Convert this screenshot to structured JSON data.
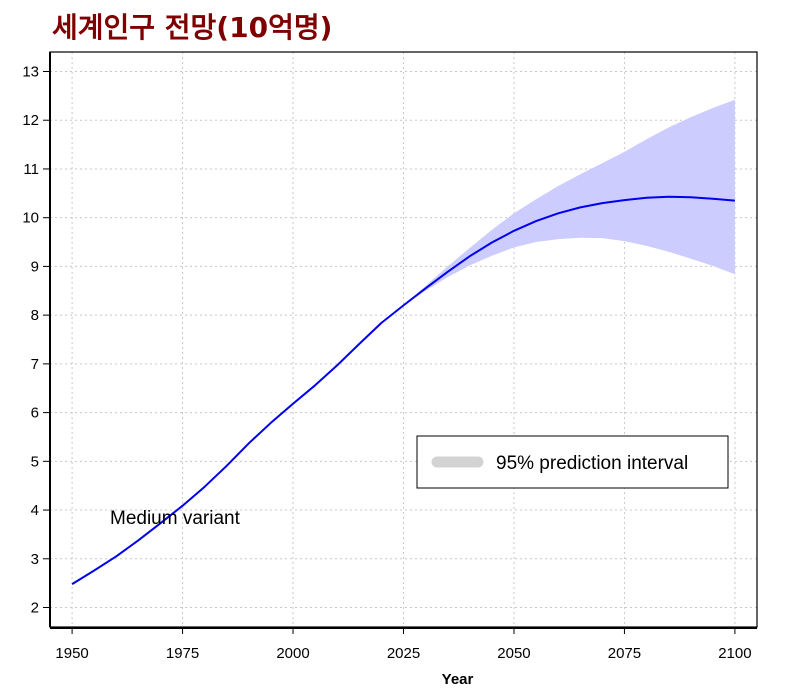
{
  "title": "세계인구 전망(10억명)",
  "colors": {
    "title": "#7f0000",
    "median_line": "#0000ee",
    "interval_fill": "#ccccff",
    "legend_swatch": "#d3d3d3",
    "grid": "#c8c8c8"
  },
  "chart_data": {
    "type": "line",
    "title": "세계인구 전망(10억명)",
    "xlabel": "Year",
    "ylabel": "",
    "xlim": [
      1945,
      2105
    ],
    "ylim": [
      1.6,
      13.4
    ],
    "xticks": [
      1950,
      1975,
      2000,
      2025,
      2050,
      2075,
      2100
    ],
    "yticks": [
      2,
      3,
      4,
      5,
      6,
      7,
      8,
      9,
      10,
      11,
      12,
      13
    ],
    "grid": true,
    "annotation": "Medium variant",
    "legend": {
      "placement": "right",
      "entries": [
        "95% prediction interval"
      ]
    },
    "series": [
      {
        "kind": "line",
        "x": [
          1950,
          1955,
          1960,
          1965,
          1970,
          1975,
          1980,
          1985,
          1990,
          1995,
          2000,
          2005,
          2010,
          2015,
          2020,
          2025,
          2030,
          2035,
          2040,
          2045,
          2050,
          2055,
          2060,
          2065,
          2070,
          2075,
          2080,
          2085,
          2090,
          2095,
          2100
        ],
        "y": [
          2.48,
          2.76,
          3.05,
          3.38,
          3.73,
          4.09,
          4.48,
          4.91,
          5.37,
          5.79,
          6.18,
          6.56,
          6.97,
          7.41,
          7.84,
          8.2,
          8.55,
          8.89,
          9.21,
          9.49,
          9.73,
          9.93,
          10.09,
          10.21,
          10.3,
          10.36,
          10.41,
          10.43,
          10.42,
          10.39,
          10.35
        ]
      },
      {
        "kind": "band",
        "name": "95% prediction interval",
        "x": [
          2025,
          2030,
          2035,
          2040,
          2045,
          2050,
          2055,
          2060,
          2065,
          2070,
          2075,
          2080,
          2085,
          2090,
          2095,
          2100
        ],
        "lower": [
          8.2,
          8.5,
          8.78,
          9.02,
          9.22,
          9.39,
          9.5,
          9.56,
          9.59,
          9.58,
          9.52,
          9.42,
          9.3,
          9.16,
          9.01,
          8.84
        ],
        "upper": [
          8.2,
          8.6,
          9.0,
          9.38,
          9.75,
          10.09,
          10.38,
          10.65,
          10.89,
          11.12,
          11.35,
          11.61,
          11.85,
          12.06,
          12.25,
          12.42
        ]
      }
    ]
  }
}
